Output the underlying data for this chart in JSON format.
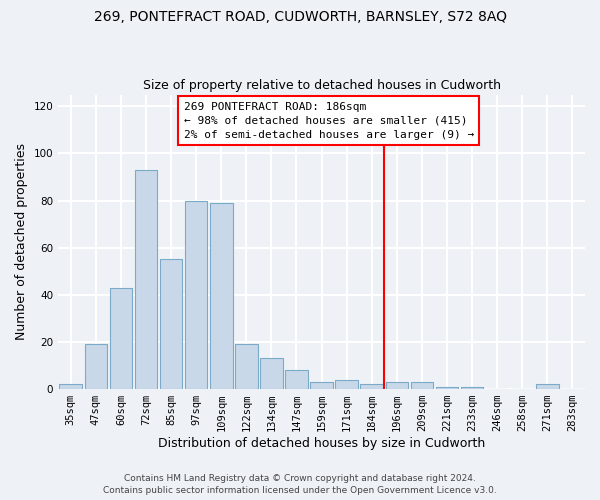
{
  "title": "269, PONTEFRACT ROAD, CUDWORTH, BARNSLEY, S72 8AQ",
  "subtitle": "Size of property relative to detached houses in Cudworth",
  "xlabel": "Distribution of detached houses by size in Cudworth",
  "ylabel": "Number of detached properties",
  "bar_labels": [
    "35sqm",
    "47sqm",
    "60sqm",
    "72sqm",
    "85sqm",
    "97sqm",
    "109sqm",
    "122sqm",
    "134sqm",
    "147sqm",
    "159sqm",
    "171sqm",
    "184sqm",
    "196sqm",
    "209sqm",
    "221sqm",
    "233sqm",
    "246sqm",
    "258sqm",
    "271sqm",
    "283sqm"
  ],
  "bar_heights": [
    2,
    19,
    43,
    93,
    55,
    80,
    79,
    19,
    13,
    8,
    3,
    4,
    2,
    3,
    3,
    1,
    1,
    0,
    0,
    2,
    0
  ],
  "bar_color": "#c8d8e8",
  "bar_edge_color": "#7aaac8",
  "vline_color": "red",
  "vline_x": 12.5,
  "annotation_title": "269 PONTEFRACT ROAD: 186sqm",
  "annotation_line1": "← 98% of detached houses are smaller (415)",
  "annotation_line2": "2% of semi-detached houses are larger (9) →",
  "annotation_box_color": "white",
  "annotation_box_edge_color": "red",
  "ylim": [
    0,
    125
  ],
  "yticks": [
    0,
    20,
    40,
    60,
    80,
    100,
    120
  ],
  "footer1": "Contains HM Land Registry data © Crown copyright and database right 2024.",
  "footer2": "Contains public sector information licensed under the Open Government Licence v3.0.",
  "background_color": "#eef2f7",
  "grid_color": "white",
  "title_fontsize": 10,
  "subtitle_fontsize": 9,
  "axis_label_fontsize": 9,
  "tick_fontsize": 7.5,
  "footer_fontsize": 6.5,
  "annotation_fontsize": 8
}
